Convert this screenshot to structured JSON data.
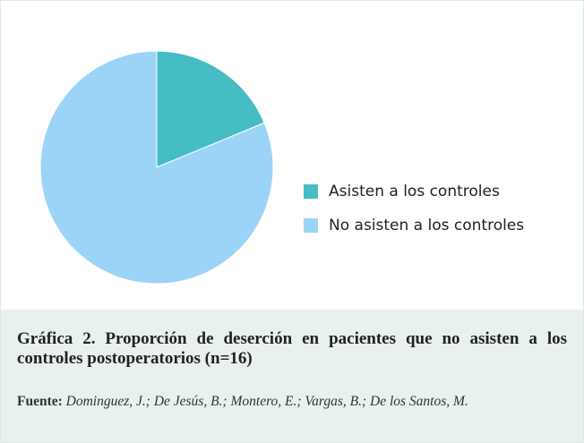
{
  "chart_data": {
    "type": "pie",
    "categories": [
      "Asisten a los controles",
      "No asisten a los controles"
    ],
    "values": [
      18.75,
      81.25
    ],
    "colors": [
      "#45bdc3",
      "#9bd4f6"
    ],
    "legend": "right"
  },
  "caption": {
    "title": "Gráfica 2. Proporción de deserción en pacientes que no asisten a los controles postoperatorios  (n=16)",
    "source_label": "Fuente:",
    "source_text": "Dominguez, J.; De Jesús, B.; Montero, E.; Vargas, B.; De los Santos, M."
  }
}
